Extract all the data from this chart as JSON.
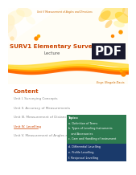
{
  "bg_color": "#ffffff",
  "header_text": "Unit V Measurement of Angles and Directions",
  "header_color": "#cc6600",
  "title": "SURV1 Elementary Surveying",
  "subtitle": "Lecture",
  "title_color": "#cc4400",
  "subtitle_color": "#555555",
  "author": "Engr. Ningela Dauis",
  "author_color": "#cc6600",
  "content_title": "Content",
  "content_title_color": "#cc4400",
  "content_items": [
    "Unit I. Surveying Concepts",
    "Unit II. Accuracy of Measurements",
    "Unit III. Measurement of Distances",
    "Unit IV. Levelling",
    "Unit V. Measurement of Angles and"
  ],
  "content_colors": [
    "#888888",
    "#888888",
    "#888888",
    "#cc4400",
    "#888888"
  ],
  "green_lines": [
    "Topics:",
    "a. Definition of Terms",
    "b. Types of Leveling Instruments",
    "   and Accessories",
    "c. Care and Handling of instrument"
  ],
  "blue_lines": [
    "d. Differential Levelling",
    "e. Profile Levelling",
    "f. Reciprocal Levelling"
  ],
  "green_color": "#2d7a4f",
  "blue_color": "#1a3a6b",
  "pdf_bg": "#1a1a2e",
  "pdf_text": "PDF",
  "pdf_text_color": "#ffffff",
  "floral_bg": "#fffdf5",
  "wave_colors": [
    "#ffcc00",
    "#ff9900",
    "#ff6600"
  ],
  "floral_yellow": "#ffdd55",
  "floral_orange": "#ffaa00"
}
